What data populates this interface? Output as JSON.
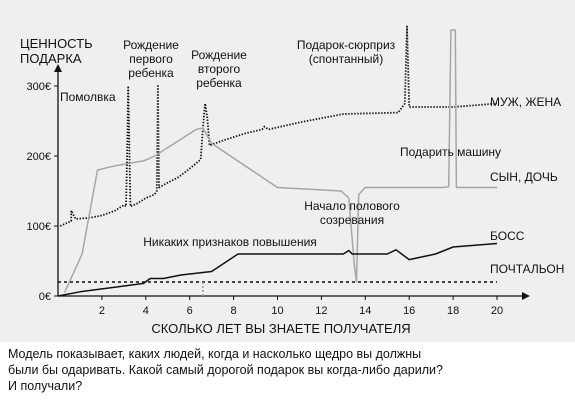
{
  "chart_data": {
    "type": "line",
    "ylabel": [
      "ЦЕННОСТЬ",
      "ПОДАРКА"
    ],
    "xlabel": "СКОЛЬКО ЛЕТ ВЫ ЗНАЕТЕ ПОЛУЧАТЕЛЯ",
    "xlim": [
      0,
      20
    ],
    "ylim": [
      0,
      320
    ],
    "x_ticks": [
      "2",
      "4",
      "6",
      "8",
      "10",
      "12",
      "14",
      "16",
      "18",
      "20"
    ],
    "y_ticks": [
      "0€",
      "100€",
      "200€",
      "300€"
    ],
    "series": [
      {
        "name": "МУЖ, ЖЕНА",
        "style": "dotted",
        "color": "#111111",
        "points": [
          [
            0.1,
            100
          ],
          [
            0.6,
            107
          ],
          [
            0.6,
            122
          ],
          [
            0.8,
            110
          ],
          [
            1.5,
            112
          ],
          [
            2.0,
            115
          ],
          [
            2.6,
            122
          ],
          [
            3.0,
            130
          ],
          [
            3.1,
            128
          ],
          [
            3.15,
            200
          ],
          [
            3.2,
            300
          ],
          [
            3.3,
            128
          ],
          [
            3.6,
            132
          ],
          [
            4.0,
            140
          ],
          [
            4.4,
            145
          ],
          [
            4.5,
            150
          ],
          [
            4.55,
            300
          ],
          [
            4.6,
            155
          ],
          [
            5.0,
            162
          ],
          [
            5.5,
            170
          ],
          [
            6.0,
            182
          ],
          [
            6.5,
            195
          ],
          [
            6.6,
            240
          ],
          [
            6.7,
            275
          ],
          [
            6.8,
            255
          ],
          [
            6.9,
            215
          ],
          [
            7.5,
            222
          ],
          [
            8.5,
            232
          ],
          [
            9.3,
            238
          ],
          [
            9.4,
            242
          ],
          [
            9.6,
            238
          ],
          [
            11.0,
            248
          ],
          [
            13.0,
            260
          ],
          [
            15.5,
            262
          ],
          [
            15.8,
            275
          ],
          [
            15.9,
            385
          ],
          [
            16.0,
            270
          ],
          [
            17.0,
            270
          ],
          [
            18.0,
            270
          ],
          [
            20.0,
            275
          ]
        ]
      },
      {
        "name": "СЫН, ДОЧЬ",
        "style": "solid",
        "color": "#a6a6a6",
        "points": [
          [
            0.3,
            5
          ],
          [
            1.1,
            60
          ],
          [
            1.8,
            180
          ],
          [
            2.6,
            186
          ],
          [
            3.9,
            193
          ],
          [
            4.4,
            200
          ],
          [
            6.3,
            238
          ],
          [
            6.6,
            240
          ],
          [
            7.0,
            218
          ],
          [
            10.0,
            155
          ],
          [
            12.9,
            150
          ],
          [
            13.25,
            140
          ],
          [
            13.5,
            45
          ],
          [
            13.6,
            20
          ],
          [
            13.7,
            145
          ],
          [
            14.0,
            155
          ],
          [
            16.0,
            155
          ],
          [
            17.5,
            155
          ],
          [
            17.8,
            156
          ],
          [
            17.9,
            380
          ],
          [
            18.1,
            380
          ],
          [
            18.15,
            155
          ],
          [
            18.3,
            155
          ],
          [
            20.0,
            155
          ]
        ]
      },
      {
        "name": "БОСС",
        "style": "solid",
        "color": "#111111",
        "points": [
          [
            0.0,
            0
          ],
          [
            1.0,
            6
          ],
          [
            3.9,
            18
          ],
          [
            4.2,
            25
          ],
          [
            4.8,
            25
          ],
          [
            5.6,
            30
          ],
          [
            7.0,
            35
          ],
          [
            8.2,
            60
          ],
          [
            13.0,
            60
          ],
          [
            13.25,
            65
          ],
          [
            13.4,
            60
          ],
          [
            15.0,
            60
          ],
          [
            15.4,
            66
          ],
          [
            16.0,
            52
          ],
          [
            17.2,
            60
          ],
          [
            18.0,
            70
          ],
          [
            20.0,
            75
          ]
        ]
      },
      {
        "name": "ПОЧТАЛЬОН",
        "style": "dashed",
        "color": "#111111",
        "points": [
          [
            0.0,
            20
          ],
          [
            20.0,
            20
          ]
        ]
      }
    ],
    "annotations": [
      {
        "text": "Помолвка",
        "x": 2.1,
        "y": 290
      },
      {
        "text": "Рождение\nпервого\nребенка",
        "x": 4.6,
        "y": 355
      },
      {
        "text": "Рождение\nвторого\nребенка",
        "x": 7.8,
        "y": 345
      },
      {
        "text": "Подарок-сюрприз\n(спонтанный)",
        "x": 13.2,
        "y": 355
      },
      {
        "text": "Подарить машину",
        "x": 16.0,
        "y": 208
      },
      {
        "text": "Начало полового\nсозревания",
        "x": 13.2,
        "y": 127
      },
      {
        "text": "Никаких признаков повышения",
        "x": 9.4,
        "y": 73
      }
    ]
  },
  "caption": "Модель показывает, каких людей, когда и насколько щедро вы должны\nбыли бы одаривать. Какой самый дорогой подарок вы когда-либо дарили?\nИ получали?",
  "colors": {
    "panel_background": "#efefef",
    "ink": "#111111",
    "child_line": "#a6a6a6"
  }
}
